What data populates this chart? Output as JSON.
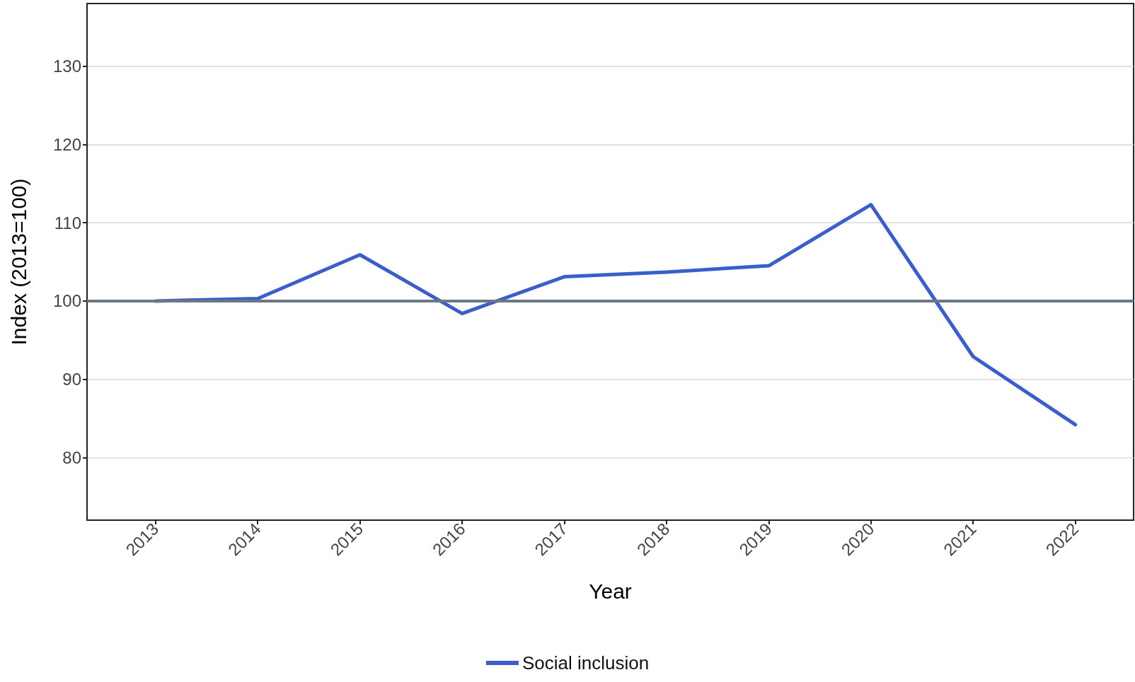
{
  "chart_data": {
    "type": "line",
    "xlabel": "Year",
    "ylabel": "Index (2013=100)",
    "x": [
      2013,
      2014,
      2015,
      2016,
      2017,
      2018,
      2019,
      2020,
      2021,
      2022
    ],
    "series": [
      {
        "name": "Social inclusion",
        "color": "#3a5fcd",
        "values": [
          100,
          100.3,
          105.9,
          98.4,
          103.1,
          103.7,
          104.5,
          112.3,
          92.9,
          84.2
        ]
      }
    ],
    "xlim": [
      2012.33,
      2022.57
    ],
    "xticks": [
      2013,
      2014,
      2015,
      2016,
      2017,
      2018,
      2019,
      2020,
      2021,
      2022
    ],
    "ylim": [
      72,
      138
    ],
    "yticks": [
      80,
      90,
      100,
      110,
      120,
      130
    ],
    "ref_lines": [
      {
        "axis": "y",
        "value": 100,
        "color": "#6b7785"
      }
    ],
    "grid": "y",
    "legend": "bottom",
    "marker": "none",
    "line_style": "solid"
  }
}
